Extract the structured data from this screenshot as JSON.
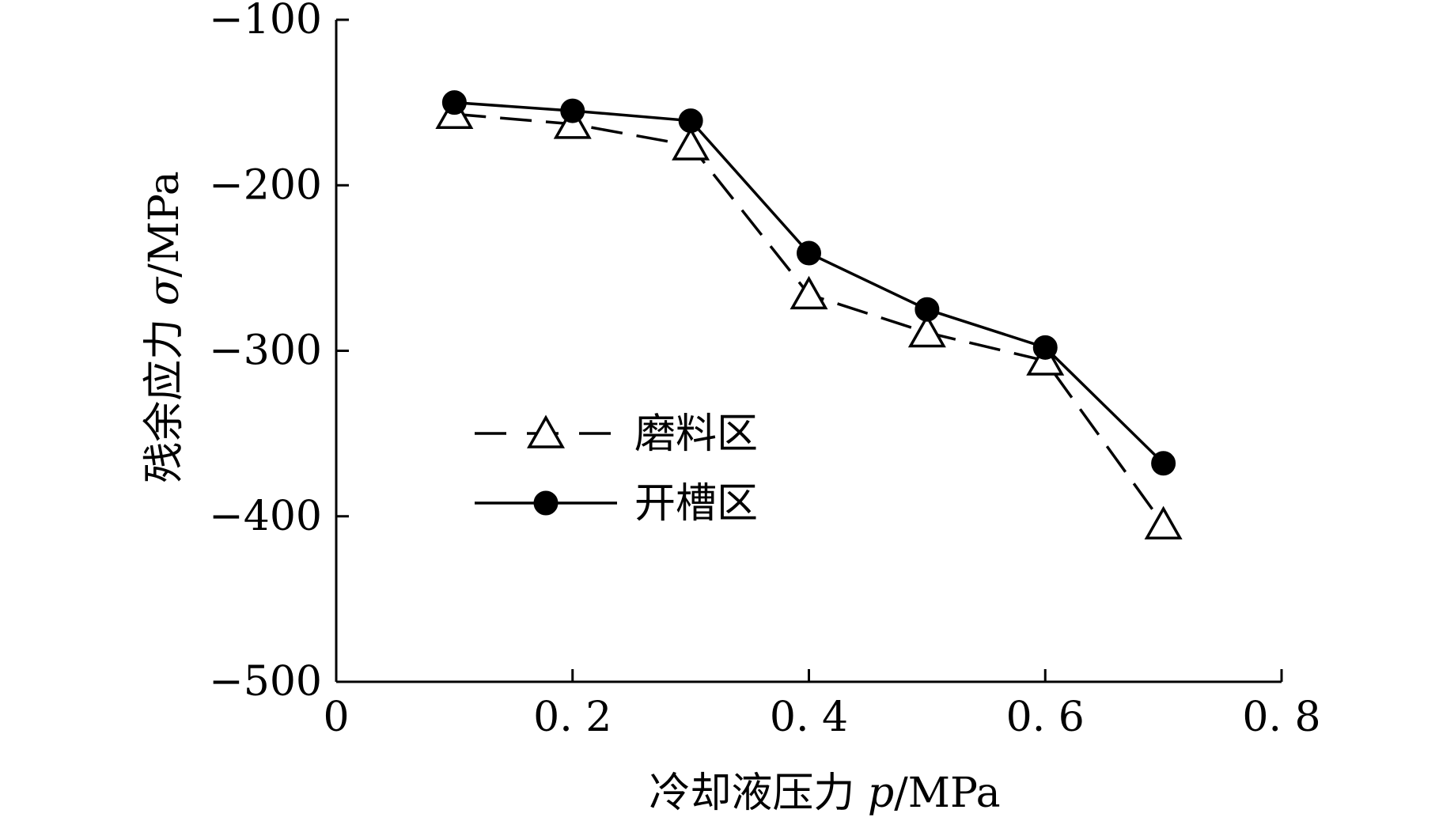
{
  "chart_data": {
    "type": "line",
    "title": "",
    "xlabel": {
      "prefix": "冷却液压力 ",
      "var": "p",
      "suffix": "/MPa"
    },
    "ylabel": {
      "prefix": "残余应力 ",
      "var": "σ",
      "suffix": "/MPa"
    },
    "xlim": [
      0,
      0.8
    ],
    "ylim": [
      -500,
      -100
    ],
    "x_ticks": [
      0,
      0.2,
      0.4,
      0.6,
      0.8
    ],
    "x_tick_labels": [
      "0",
      "0. 2",
      "0. 4",
      "0. 6",
      "0. 8"
    ],
    "y_ticks": [
      -100,
      -200,
      -300,
      -400,
      -500
    ],
    "y_tick_labels": [
      "−100",
      "−200",
      "−300",
      "−400",
      "−500"
    ],
    "grid": false,
    "legend_position": "center-left",
    "x": [
      0.1,
      0.2,
      0.3,
      0.4,
      0.5,
      0.6,
      0.7
    ],
    "series": [
      {
        "name": "磨料区",
        "marker": "triangle-open",
        "line_style": "dashed",
        "values": [
          -157,
          -163,
          -176,
          -266,
          -289,
          -306,
          -405
        ]
      },
      {
        "name": "开槽区",
        "marker": "circle-filled",
        "line_style": "solid",
        "values": [
          -150,
          -155,
          -161,
          -241,
          -275,
          -298,
          -368
        ]
      }
    ]
  }
}
